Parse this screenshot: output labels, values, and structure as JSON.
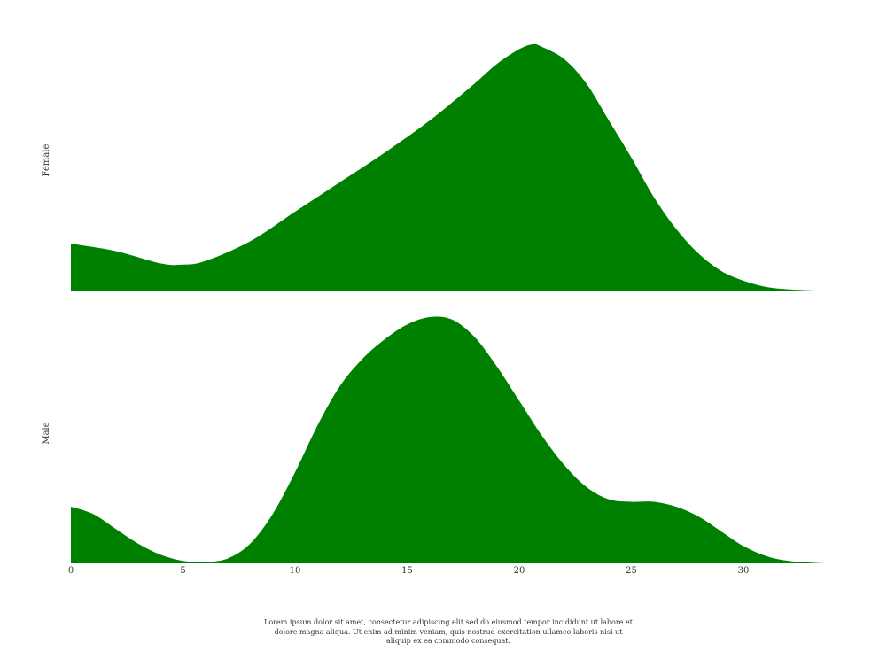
{
  "chart_data": {
    "type": "area",
    "chart_style": "ridgeline density plot",
    "fill_color": "#008000",
    "grid": false,
    "x_ticks": [
      0,
      5,
      10,
      15,
      20,
      25,
      30
    ],
    "xlim": [
      0,
      34
    ],
    "series": [
      {
        "name": "Female",
        "x": [
          0,
          2,
          4,
          5,
          6,
          8,
          10,
          12,
          14,
          16,
          18,
          19,
          20,
          20.6,
          21,
          22,
          23,
          24,
          25,
          26,
          27,
          28,
          29,
          30,
          31,
          32,
          33.2
        ],
        "y": [
          0.19,
          0.16,
          0.11,
          0.105,
          0.12,
          0.2,
          0.32,
          0.44,
          0.56,
          0.69,
          0.84,
          0.92,
          0.98,
          1.0,
          0.99,
          0.94,
          0.84,
          0.69,
          0.54,
          0.38,
          0.25,
          0.15,
          0.08,
          0.04,
          0.015,
          0.005,
          0.0
        ]
      },
      {
        "name": "Male",
        "x": [
          0,
          1,
          2,
          3,
          4,
          5,
          6,
          7,
          8,
          9,
          10,
          11,
          12,
          13,
          14,
          15,
          16,
          17,
          18,
          19,
          20,
          21,
          22,
          23,
          24,
          25,
          26,
          27,
          28,
          29,
          30,
          31,
          32,
          33.6
        ],
        "y": [
          0.23,
          0.2,
          0.14,
          0.08,
          0.035,
          0.01,
          0.005,
          0.02,
          0.08,
          0.2,
          0.37,
          0.56,
          0.72,
          0.83,
          0.91,
          0.97,
          1.0,
          0.99,
          0.92,
          0.8,
          0.66,
          0.52,
          0.4,
          0.31,
          0.26,
          0.25,
          0.25,
          0.23,
          0.19,
          0.13,
          0.07,
          0.03,
          0.01,
          0.0
        ]
      }
    ]
  },
  "caption": "Lorem ipsum dolor sit amet, consectetur adipiscing elit sed do eiusmod tempor incididunt ut labore et dolore magna aliqua. Ut enim ad minim veniam, quis nostrud exercitation ullamco laboris nisi ut aliquip ex ea commodo consequat."
}
